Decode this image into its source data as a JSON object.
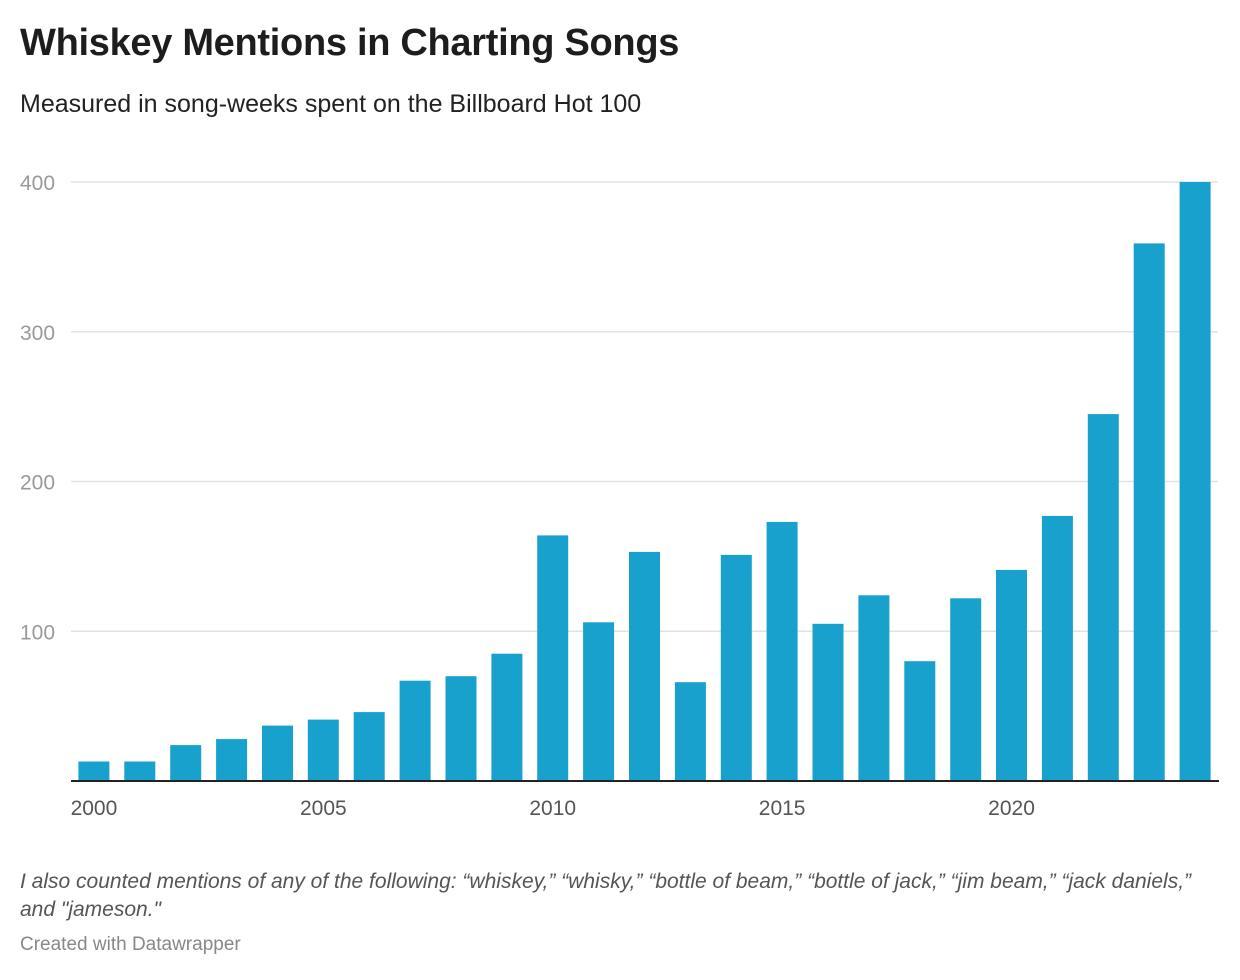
{
  "chart_data": {
    "type": "bar",
    "title": "Whiskey Mentions in Charting Songs",
    "subtitle": "Measured in song-weeks spent on the Billboard Hot 100",
    "x": [
      2000,
      2001,
      2002,
      2003,
      2004,
      2005,
      2006,
      2007,
      2008,
      2009,
      2010,
      2011,
      2012,
      2013,
      2014,
      2015,
      2016,
      2017,
      2018,
      2019,
      2020,
      2021,
      2022,
      2023,
      2024
    ],
    "values": [
      13,
      13,
      24,
      28,
      37,
      41,
      46,
      67,
      70,
      85,
      164,
      106,
      153,
      66,
      151,
      173,
      105,
      124,
      80,
      122,
      141,
      177,
      245,
      359,
      400
    ],
    "x_ticks": [
      "2000",
      "2005",
      "2010",
      "2015",
      "2020"
    ],
    "x_tick_years": [
      2000,
      2005,
      2010,
      2015,
      2020
    ],
    "y_ticks": [
      "100",
      "200",
      "300",
      "400"
    ],
    "y_tick_values": [
      100,
      200,
      300,
      400
    ],
    "ylim": [
      0,
      400
    ],
    "xlabel": "",
    "ylabel": "",
    "grid": true,
    "bar_color": "#18a1cd"
  },
  "notes": "I also counted mentions of any of the following: “whiskey,” “whisky,” “bottle of beam,” “bottle of jack,” “jim beam,” “jack daniels,” and \"jameson.\"",
  "credit": "Created with Datawrapper"
}
